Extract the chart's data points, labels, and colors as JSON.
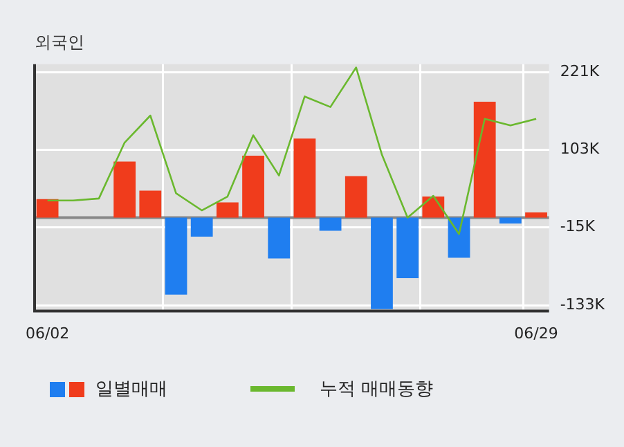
{
  "chart_data": {
    "type": "bar",
    "title": "외국인",
    "categories": [
      "06/02",
      null,
      null,
      null,
      null,
      null,
      null,
      null,
      null,
      null,
      null,
      null,
      null,
      null,
      null,
      null,
      null,
      null,
      null,
      "06/29"
    ],
    "series": [
      {
        "name": "일별매매",
        "colors": [
          "#f03c1c",
          "#f03c1c",
          "#f03c1c",
          "#f03c1c",
          "#f03c1c",
          "#1f7ef0",
          "#1f7ef0",
          "#f03c1c",
          "#f03c1c",
          "#1f7ef0",
          "#f03c1c",
          "#1f7ef0",
          "#f03c1c",
          "#1f7ef0",
          "#1f7ef0",
          "#f03c1c",
          "#1f7ef0",
          "#f03c1c",
          "#1f7ef0",
          "#f03c1c"
        ],
        "values": [
          28,
          0,
          0,
          85,
          41,
          -117,
          -29,
          23,
          94,
          -62,
          120,
          -20,
          63,
          -139,
          -92,
          32,
          -61,
          176,
          -9,
          8
        ]
      },
      {
        "name": "누적 매매동향",
        "type": "line",
        "color": "#6ab82e",
        "values": [
          26,
          26,
          29,
          114,
          155,
          37,
          11,
          32,
          125,
          64,
          184,
          168,
          228,
          96,
          0,
          33,
          -25,
          150,
          140,
          150
        ]
      }
    ],
    "ylim": [
      -142,
      233
    ],
    "yticks": [
      {
        "value": 221,
        "label": "221K"
      },
      {
        "value": 103,
        "label": "103K"
      },
      {
        "value": -15,
        "label": "-15K"
      },
      {
        "value": -133,
        "label": "-133K"
      }
    ],
    "ref_lines": [
      {
        "axis": "y",
        "value": 0,
        "color": "#888888"
      }
    ],
    "grid": true,
    "legend": "bottom",
    "marker": "none",
    "line_style": "solid"
  }
}
